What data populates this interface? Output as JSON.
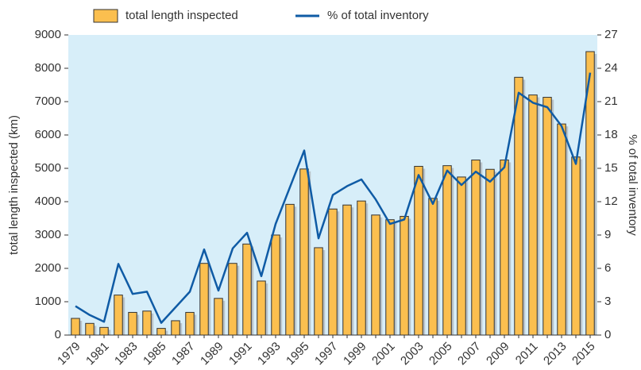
{
  "chart_data": {
    "type": "bar-line",
    "categories": [
      "1979",
      null,
      "1981",
      null,
      "1983",
      null,
      "1985",
      null,
      "1987",
      null,
      "1989",
      null,
      "1991",
      null,
      "1993",
      null,
      "1995",
      null,
      "1997",
      null,
      "1999",
      null,
      "2001",
      null,
      "2003",
      null,
      "2005",
      null,
      "2007",
      null,
      "2009",
      null,
      "2011",
      null,
      "2013",
      null,
      "2015"
    ],
    "series": [
      {
        "name": "total length inspected",
        "type": "bar",
        "color": "#fbbf4f",
        "axis": "y",
        "values": [
          500,
          350,
          230,
          1200,
          680,
          720,
          200,
          430,
          680,
          2150,
          1100,
          2150,
          2730,
          1620,
          3000,
          3920,
          4980,
          2620,
          3780,
          3900,
          4020,
          3600,
          3460,
          3560,
          5060,
          4100,
          5080,
          4740,
          5250,
          4970,
          5250,
          7730,
          7200,
          7130,
          6330,
          5340,
          8500
        ]
      },
      {
        "name": "% of total inventory",
        "type": "line",
        "color": "#0f5ba5",
        "axis": "y2",
        "values": [
          2.6,
          1.8,
          1.2,
          6.4,
          3.7,
          3.9,
          1.1,
          2.5,
          3.9,
          7.7,
          4.0,
          7.8,
          9.2,
          5.3,
          10.0,
          13.3,
          16.6,
          8.7,
          12.6,
          13.4,
          14.0,
          12.2,
          10.0,
          10.4,
          14.4,
          11.8,
          14.8,
          13.5,
          14.7,
          13.8,
          15.1,
          21.8,
          20.9,
          20.5,
          18.8,
          15.4,
          23.6
        ]
      }
    ],
    "y_label": "total length inspected (km)",
    "y2_label": "% of total inventory",
    "ylim": [
      0,
      9000
    ],
    "yticks": [
      0,
      1000,
      2000,
      3000,
      4000,
      5000,
      6000,
      7000,
      8000,
      9000
    ],
    "y2lim": [
      0,
      27
    ],
    "y2ticks": [
      0,
      3,
      6,
      9,
      12,
      15,
      18,
      21,
      24,
      27
    ],
    "background": "#d7eef9"
  }
}
